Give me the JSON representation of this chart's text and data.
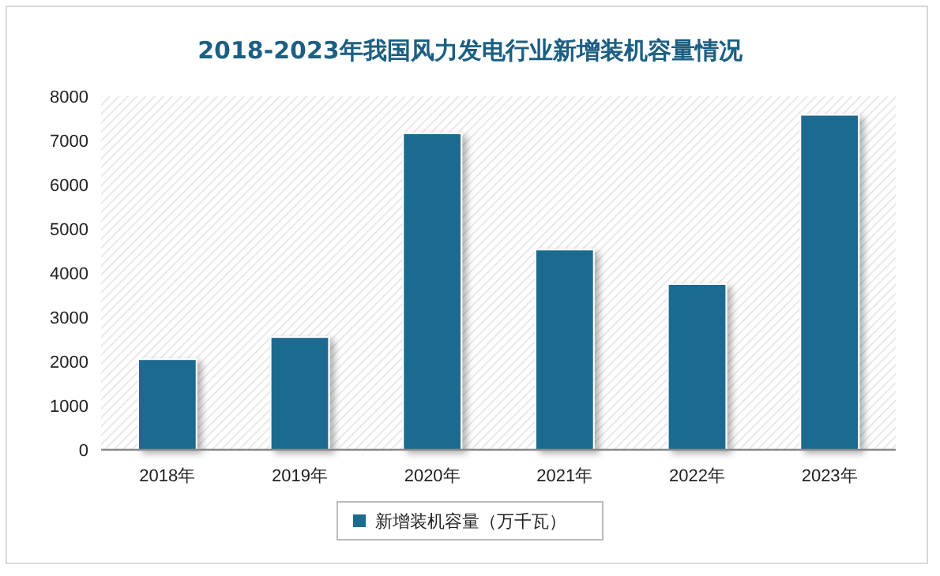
{
  "chart_data": {
    "type": "bar",
    "title": "2018-2023年我国风力发电行业新增装机容量情况",
    "categories": [
      "2018年",
      "2019年",
      "2020年",
      "2021年",
      "2022年",
      "2023年"
    ],
    "series": [
      {
        "name": "新增装机容量（万千瓦）",
        "color": "#1c6b8f",
        "values": [
          2050,
          2550,
          7160,
          4530,
          3750,
          7580
        ]
      }
    ],
    "ylim": [
      0,
      8000
    ],
    "yticks": [
      0,
      1000,
      2000,
      3000,
      4000,
      5000,
      6000,
      7000,
      8000
    ],
    "legend": "bottom",
    "grid": false
  }
}
